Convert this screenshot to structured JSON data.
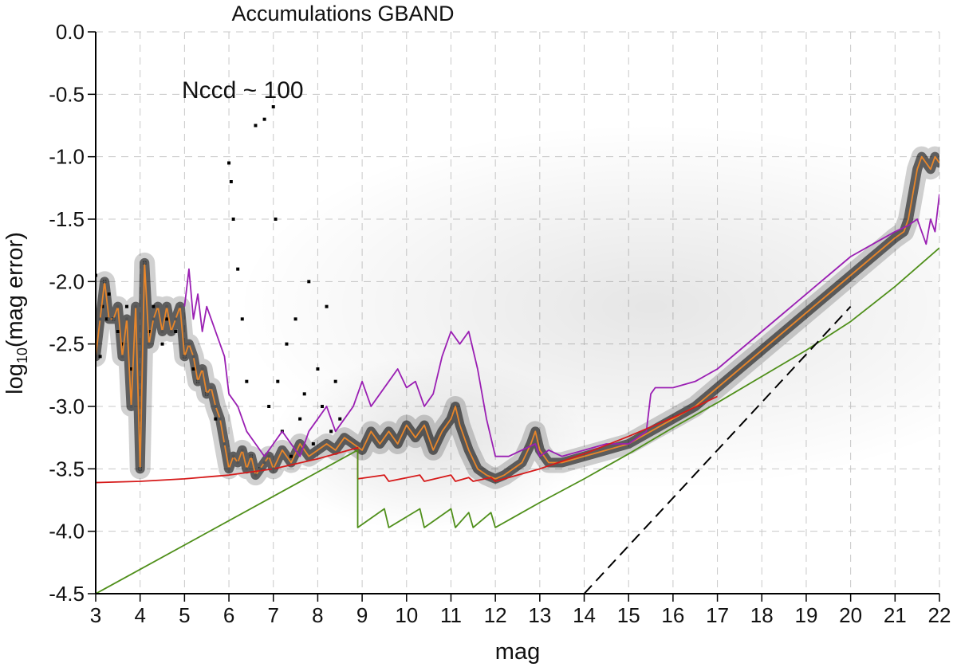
{
  "chart_data": {
    "type": "scatter",
    "title": "Accumulations GBAND",
    "xlabel": "mag",
    "ylabel_main": "log",
    "ylabel_sub": "10",
    "ylabel_rest": "(mag error)",
    "annotation": "Nccd ~ 100",
    "xlim": [
      3,
      22
    ],
    "ylim": [
      -4.5,
      0.0
    ],
    "grid": true,
    "x_ticks": [
      3,
      4,
      5,
      6,
      7,
      8,
      9,
      10,
      11,
      12,
      13,
      14,
      15,
      16,
      17,
      18,
      19,
      20,
      21,
      22
    ],
    "y_ticks": [
      0.0,
      -0.5,
      -1.0,
      -1.5,
      -2.0,
      -2.5,
      -3.0,
      -3.5,
      -4.0,
      -4.5
    ],
    "y_tick_labels": [
      "0.0",
      "-0.5",
      "-1.0",
      "-1.5",
      "-2.0",
      "-2.5",
      "-3.0",
      "-3.5",
      "-4.0",
      "-4.5"
    ],
    "colors": {
      "orange": "#e8862a",
      "purple": "#9a1fb3",
      "red": "#d61a1a",
      "green": "#4f8f1a",
      "dashed": "#000000",
      "density": "#000000"
    },
    "series": [
      {
        "key": "orange",
        "x": [
          3.0,
          3.1,
          3.2,
          3.3,
          3.4,
          3.5,
          3.6,
          3.7,
          3.8,
          3.9,
          4.0,
          4.1,
          4.2,
          4.3,
          4.4,
          4.5,
          4.6,
          4.7,
          4.8,
          4.9,
          5.0,
          5.1,
          5.2,
          5.3,
          5.4,
          5.5,
          5.6,
          5.7,
          5.8,
          5.9,
          6.0,
          6.1,
          6.2,
          6.3,
          6.4,
          6.5,
          6.6,
          6.7,
          6.8,
          6.9,
          7.0,
          7.2,
          7.4,
          7.6,
          7.8,
          8.0,
          8.2,
          8.4,
          8.6,
          8.8,
          9.0,
          9.2,
          9.4,
          9.6,
          9.8,
          10.0,
          10.2,
          10.4,
          10.6,
          10.8,
          11.0,
          11.1,
          11.2,
          11.4,
          11.6,
          11.8,
          12.0,
          12.2,
          12.4,
          12.6,
          12.8,
          12.9,
          13.0,
          13.2,
          13.5,
          14.0,
          14.5,
          15.0,
          15.5,
          16.0,
          16.5,
          17.0,
          17.5,
          18.0,
          18.5,
          19.0,
          19.5,
          20.0,
          20.5,
          21.0,
          21.2,
          21.3,
          21.4,
          21.5,
          21.6,
          21.7,
          21.8,
          21.9,
          22.0
        ],
        "y": [
          -2.6,
          -2.3,
          -2.0,
          -2.3,
          -2.3,
          -2.2,
          -2.6,
          -2.3,
          -3.0,
          -2.2,
          -3.5,
          -1.85,
          -2.5,
          -2.3,
          -2.2,
          -2.4,
          -2.2,
          -2.4,
          -2.3,
          -2.2,
          -2.6,
          -2.5,
          -2.6,
          -2.8,
          -2.7,
          -2.9,
          -2.85,
          -3.0,
          -3.1,
          -3.3,
          -3.5,
          -3.4,
          -3.45,
          -3.35,
          -3.5,
          -3.4,
          -3.55,
          -3.5,
          -3.45,
          -3.4,
          -3.5,
          -3.35,
          -3.45,
          -3.3,
          -3.4,
          -3.35,
          -3.3,
          -3.35,
          -3.25,
          -3.3,
          -3.35,
          -3.2,
          -3.3,
          -3.2,
          -3.3,
          -3.15,
          -3.25,
          -3.15,
          -3.35,
          -3.2,
          -3.1,
          -3.0,
          -3.15,
          -3.35,
          -3.5,
          -3.55,
          -3.58,
          -3.55,
          -3.5,
          -3.45,
          -3.3,
          -3.2,
          -3.35,
          -3.45,
          -3.45,
          -3.4,
          -3.35,
          -3.3,
          -3.2,
          -3.1,
          -3.0,
          -2.85,
          -2.7,
          -2.55,
          -2.4,
          -2.25,
          -2.1,
          -1.95,
          -1.8,
          -1.65,
          -1.6,
          -1.5,
          -1.3,
          -1.1,
          -1.0,
          -1.05,
          -1.1,
          -1.0,
          -1.05
        ]
      },
      {
        "key": "purple",
        "x": [
          5.0,
          5.1,
          5.2,
          5.3,
          5.4,
          5.5,
          5.6,
          5.7,
          5.8,
          5.9,
          6.0,
          6.2,
          6.4,
          6.6,
          6.8,
          7.0,
          7.2,
          7.4,
          7.6,
          7.8,
          8.0,
          8.2,
          8.4,
          8.6,
          8.8,
          9.0,
          9.2,
          9.4,
          9.6,
          9.8,
          10.0,
          10.2,
          10.4,
          10.6,
          10.8,
          11.0,
          11.2,
          11.4,
          11.6,
          11.8,
          12.0,
          12.3,
          12.6,
          12.9,
          13.0,
          13.2,
          13.5,
          14.0,
          14.5,
          15.0,
          15.4,
          15.5,
          15.6,
          16.0,
          16.5,
          17.0,
          17.5,
          18.0,
          18.5,
          19.0,
          19.5,
          20.0,
          20.5,
          21.0,
          21.3,
          21.5,
          21.7,
          21.8,
          21.9,
          22.0
        ],
        "y": [
          -2.2,
          -1.9,
          -2.3,
          -2.1,
          -2.4,
          -2.2,
          -2.3,
          -2.4,
          -2.5,
          -2.6,
          -2.9,
          -3.0,
          -3.2,
          -3.3,
          -3.4,
          -3.3,
          -3.2,
          -3.3,
          -3.4,
          -3.2,
          -3.1,
          -3.0,
          -3.2,
          -3.1,
          -3.0,
          -2.8,
          -3.0,
          -2.9,
          -2.8,
          -2.7,
          -2.85,
          -2.8,
          -3.0,
          -2.9,
          -2.6,
          -2.4,
          -2.5,
          -2.4,
          -2.7,
          -3.1,
          -3.4,
          -3.4,
          -3.35,
          -3.3,
          -3.4,
          -3.35,
          -3.4,
          -3.35,
          -3.3,
          -3.3,
          -3.2,
          -2.9,
          -2.85,
          -2.85,
          -2.8,
          -2.7,
          -2.55,
          -2.4,
          -2.25,
          -2.1,
          -1.95,
          -1.8,
          -1.7,
          -1.6,
          -1.55,
          -1.5,
          -1.7,
          -1.5,
          -1.6,
          -1.3
        ]
      },
      {
        "key": "red",
        "x": [
          3.0,
          4.0,
          5.0,
          6.0,
          7.0,
          7.5,
          8.0,
          8.5,
          8.9,
          8.9,
          9.5,
          9.6,
          10.3,
          10.4,
          11.0,
          11.1,
          11.4,
          11.5,
          11.9,
          12.0,
          13.0,
          14.0,
          15.0,
          16.0,
          17.0
        ],
        "y": [
          -3.61,
          -3.6,
          -3.58,
          -3.55,
          -3.5,
          -3.46,
          -3.42,
          -3.37,
          -3.33,
          -3.58,
          -3.55,
          -3.6,
          -3.55,
          -3.6,
          -3.55,
          -3.6,
          -3.57,
          -3.6,
          -3.57,
          -3.6,
          -3.5,
          -3.38,
          -3.24,
          -3.09,
          -2.92
        ]
      },
      {
        "key": "green",
        "x": [
          3.0,
          8.9,
          8.9,
          9.5,
          9.6,
          10.3,
          10.4,
          11.0,
          11.1,
          11.4,
          11.5,
          11.9,
          12.0,
          13.0,
          14.0,
          15.0,
          16.0,
          17.0,
          18.0,
          19.0,
          20.0,
          21.0,
          22.0
        ],
        "y": [
          -4.5,
          -3.35,
          -3.97,
          -3.82,
          -3.97,
          -3.82,
          -3.97,
          -3.82,
          -3.97,
          -3.85,
          -3.97,
          -3.85,
          -3.97,
          -3.77,
          -3.58,
          -3.38,
          -3.17,
          -2.97,
          -2.76,
          -2.55,
          -2.32,
          -2.04,
          -1.73
        ]
      },
      {
        "key": "dashed",
        "x": [
          14.0,
          20.0
        ],
        "y": [
          -4.5,
          -2.2
        ]
      }
    ],
    "scatter_points": {
      "x": [
        3.0,
        3.1,
        3.15,
        3.2,
        3.25,
        3.3,
        3.4,
        3.5,
        3.6,
        3.7,
        3.8,
        4.0,
        4.1,
        4.2,
        4.3,
        4.5,
        4.6,
        4.8,
        5.0,
        5.2,
        5.3,
        5.5,
        5.7,
        6.0,
        6.05,
        6.1,
        6.2,
        6.3,
        6.4,
        6.5,
        6.6,
        6.7,
        6.8,
        6.9,
        7.0,
        7.05,
        7.1,
        7.2,
        7.3,
        7.4,
        7.5,
        7.6,
        7.7,
        7.8,
        7.9,
        8.0,
        8.1,
        8.2,
        8.3,
        8.4,
        8.5
      ],
      "y": [
        -1.95,
        -2.6,
        -2.2,
        -2.0,
        -2.3,
        -2.1,
        -2.3,
        -2.4,
        -2.5,
        -2.2,
        -2.7,
        -3.5,
        -1.85,
        -2.4,
        -2.2,
        -2.5,
        -2.3,
        -2.4,
        -2.6,
        -2.7,
        -2.8,
        -2.9,
        -3.1,
        -1.05,
        -1.2,
        -1.5,
        -1.9,
        -2.3,
        -2.8,
        -3.4,
        -0.75,
        -3.5,
        -0.7,
        -3.0,
        -0.6,
        -1.5,
        -2.8,
        -3.2,
        -2.5,
        -3.4,
        -2.3,
        -3.1,
        -2.9,
        -2.0,
        -3.3,
        -2.7,
        -3.0,
        -2.2,
        -3.2,
        -2.8,
        -3.1
      ]
    }
  }
}
